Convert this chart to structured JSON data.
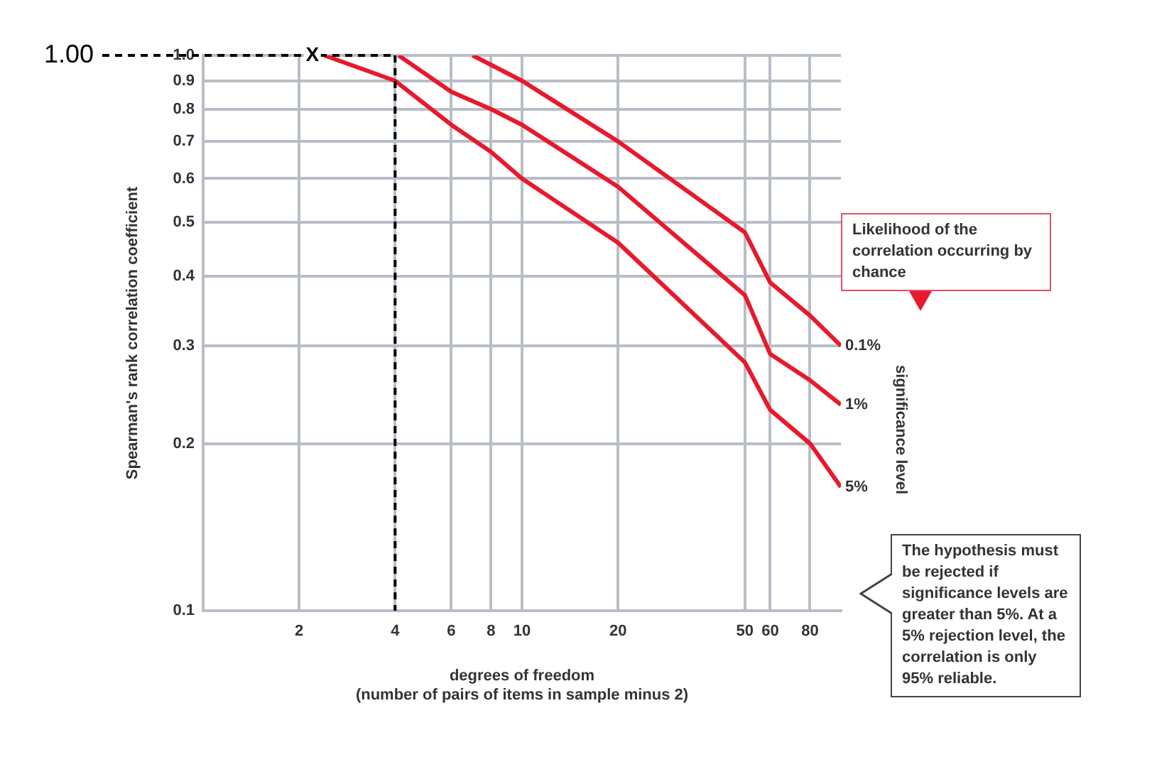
{
  "chart_data": {
    "type": "line",
    "xlabel": "degrees of freedom\n(number of pairs of items in sample minus 2)",
    "ylabel": "Spearman's rank correlation coefficient",
    "y2label": "significance level",
    "log": "xy",
    "xlim": [
      1,
      100
    ],
    "xticks": [
      2,
      4,
      6,
      8,
      10,
      20,
      50,
      60,
      80
    ],
    "ylim": [
      0.1,
      1
    ],
    "yticks": [
      0.1,
      0.2,
      0.3,
      0.4,
      0.5,
      0.6,
      0.7,
      0.8,
      0.9,
      {
        "value": 1,
        "label": "1.0"
      }
    ],
    "grid": true,
    "legend": false,
    "marker": "none",
    "line_style": "solid",
    "ref_lines": [
      {
        "axis": "y",
        "value": 1,
        "label": "1.00",
        "line_style": "dashed",
        "color": "#000000"
      },
      {
        "axis": "x",
        "value": 4,
        "line_style": "dashed",
        "color": "#000000"
      }
    ],
    "annotations": [
      {
        "text": "X",
        "x": 2.2,
        "y": 1
      },
      "Likelihood of the correlation occurring by chance",
      "The hypothesis must be rejected if significance levels are greater than 5%. At a 5% rejection level, the correlation is only 95% reliable."
    ],
    "series": [
      {
        "name": "0.1%",
        "color": "#e8192c",
        "x": [
          7,
          10,
          20,
          50,
          60,
          80,
          100
        ],
        "values": [
          1,
          0.9,
          0.7,
          0.48,
          0.39,
          0.34,
          0.3
        ]
      },
      {
        "name": "1%",
        "color": "#e8192c",
        "x": [
          4.1,
          6,
          8,
          10,
          20,
          50,
          60,
          80,
          100
        ],
        "values": [
          1,
          0.86,
          0.8,
          0.75,
          0.58,
          0.37,
          0.29,
          0.26,
          0.235
        ]
      },
      {
        "name": "5%",
        "color": "#e8192c",
        "x": [
          2.4,
          4,
          6,
          8,
          10,
          20,
          50,
          60,
          80,
          100
        ],
        "values": [
          1,
          0.9,
          0.75,
          0.67,
          0.6,
          0.46,
          0.28,
          0.23,
          0.2,
          0.167
        ]
      }
    ]
  }
}
